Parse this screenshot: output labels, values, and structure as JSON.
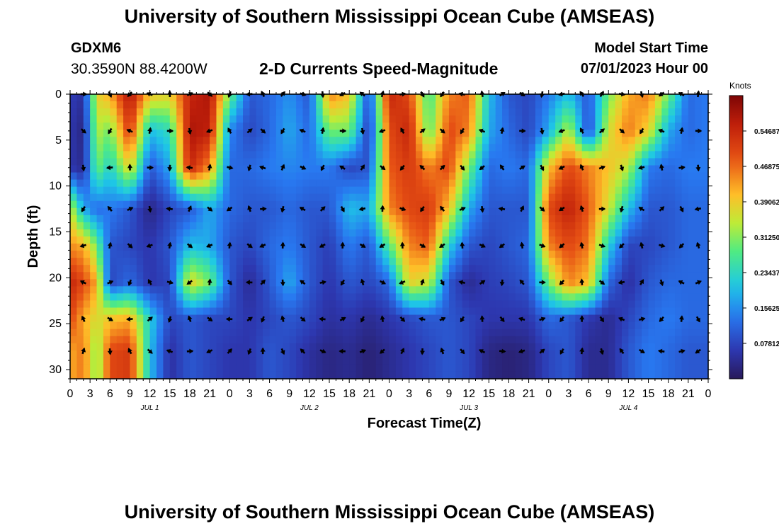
{
  "header": {
    "title": "University of Southern Mississippi Ocean Cube (AMSEAS)",
    "station": "GDXM6",
    "coords": "30.3590N  88.4200W",
    "subtitle": "2-D Currents Speed-Magnitude",
    "model_start_label": "Model Start Time",
    "model_start_value": "07/01/2023 Hour 00"
  },
  "footer": {
    "title": "University of Southern Mississippi Ocean Cube (AMSEAS)"
  },
  "chart_data": {
    "type": "heatmap",
    "title": "2-D Currents Speed-Magnitude",
    "xlabel": "Forecast Time(Z)",
    "ylabel": "Depth (ft)",
    "x_tick_labels": [
      "0",
      "3",
      "6",
      "9",
      "12",
      "15",
      "18",
      "21",
      "0",
      "3",
      "6",
      "9",
      "12",
      "15",
      "18",
      "21",
      "0",
      "3",
      "6",
      "9",
      "12",
      "15",
      "18",
      "21",
      "0",
      "3",
      "6",
      "9",
      "12",
      "15",
      "18",
      "21",
      "0"
    ],
    "day_labels": [
      {
        "label": "JUL 1",
        "hour": 12
      },
      {
        "label": "JUL 2",
        "hour": 36
      },
      {
        "label": "JUL 3",
        "hour": 60
      },
      {
        "label": "JUL 4",
        "hour": 84
      }
    ],
    "xlim": [
      0,
      96
    ],
    "ylim": [
      0,
      31
    ],
    "y_ticks": [
      0,
      5,
      10,
      15,
      20,
      25,
      30
    ],
    "y_inverted": true,
    "colorbar": {
      "unit": "Knots",
      "range": [
        0,
        0.625
      ],
      "tick_values": [
        0.078125,
        0.15625,
        0.234375,
        0.3125,
        0.390625,
        0.46875,
        0.546875
      ],
      "tick_labels": [
        "0.07812",
        "0.15625",
        "0.23437",
        "0.31250",
        "0.39062",
        "0.46875",
        "0.54687"
      ]
    },
    "depth_levels": [
      0,
      4,
      8,
      12.5,
      16.5,
      20.5,
      24.5,
      28
    ],
    "arrow_hours": [
      2,
      6,
      9,
      12,
      15,
      18,
      21,
      24,
      27,
      29,
      32,
      35,
      38,
      41,
      44,
      47,
      50,
      53,
      56,
      59,
      62,
      65,
      68,
      71,
      74,
      77,
      80,
      83,
      86,
      89,
      92,
      94.5
    ],
    "knots": [
      {
        "t": 0,
        "s": [
          0.07,
          0.06,
          0.06,
          0.36,
          0.44,
          0.55,
          0.5,
          0.42
        ]
      },
      {
        "t": 2,
        "s": [
          0.05,
          0.03,
          0.04,
          0.18,
          0.42,
          0.5,
          0.42,
          0.46
        ]
      },
      {
        "t": 4,
        "s": [
          0.38,
          0.34,
          0.3,
          0.12,
          0.3,
          0.42,
          0.36,
          0.3
        ]
      },
      {
        "t": 6,
        "s": [
          0.42,
          0.3,
          0.22,
          0.14,
          0.1,
          0.08,
          0.4,
          0.5
        ]
      },
      {
        "t": 9,
        "s": [
          0.58,
          0.52,
          0.38,
          0.1,
          0.08,
          0.12,
          0.42,
          0.52
        ]
      },
      {
        "t": 12,
        "s": [
          0.4,
          0.2,
          0.1,
          0.03,
          0.06,
          0.06,
          0.22,
          0.2
        ]
      },
      {
        "t": 15,
        "s": [
          0.38,
          0.24,
          0.18,
          0.08,
          0.1,
          0.08,
          0.08,
          0.05
        ]
      },
      {
        "t": 18,
        "s": [
          0.55,
          0.58,
          0.55,
          0.1,
          0.2,
          0.38,
          0.1,
          0.1
        ]
      },
      {
        "t": 21,
        "s": [
          0.58,
          0.56,
          0.44,
          0.18,
          0.18,
          0.3,
          0.08,
          0.08
        ]
      },
      {
        "t": 24,
        "s": [
          0.3,
          0.15,
          0.12,
          0.12,
          0.1,
          0.1,
          0.08,
          0.06
        ]
      },
      {
        "t": 27,
        "s": [
          0.1,
          0.08,
          0.12,
          0.1,
          0.08,
          0.04,
          0.06,
          0.06
        ]
      },
      {
        "t": 30,
        "s": [
          0.12,
          0.12,
          0.14,
          0.1,
          0.12,
          0.1,
          0.08,
          0.1
        ]
      },
      {
        "t": 33,
        "s": [
          0.16,
          0.18,
          0.15,
          0.12,
          0.14,
          0.18,
          0.1,
          0.08
        ]
      },
      {
        "t": 36,
        "s": [
          0.1,
          0.12,
          0.14,
          0.1,
          0.1,
          0.1,
          0.08,
          0.05
        ]
      },
      {
        "t": 39,
        "s": [
          0.45,
          0.3,
          0.14,
          0.1,
          0.07,
          0.06,
          0.05,
          0.03
        ]
      },
      {
        "t": 42,
        "s": [
          0.4,
          0.3,
          0.08,
          0.2,
          0.14,
          0.1,
          0.06,
          0.04
        ]
      },
      {
        "t": 45,
        "s": [
          0.08,
          0.06,
          0.1,
          0.18,
          0.1,
          0.08,
          0.04,
          0.02
        ]
      },
      {
        "t": 48,
        "s": [
          0.55,
          0.5,
          0.48,
          0.45,
          0.28,
          0.12,
          0.06,
          0.04
        ]
      },
      {
        "t": 51,
        "s": [
          0.5,
          0.55,
          0.52,
          0.5,
          0.45,
          0.38,
          0.08,
          0.06
        ]
      },
      {
        "t": 54,
        "s": [
          0.26,
          0.28,
          0.45,
          0.52,
          0.48,
          0.35,
          0.1,
          0.08
        ]
      },
      {
        "t": 57,
        "s": [
          0.45,
          0.5,
          0.5,
          0.4,
          0.22,
          0.1,
          0.1,
          0.1
        ]
      },
      {
        "t": 60,
        "s": [
          0.48,
          0.45,
          0.3,
          0.18,
          0.1,
          0.04,
          0.08,
          0.08
        ]
      },
      {
        "t": 63,
        "s": [
          0.2,
          0.18,
          0.12,
          0.1,
          0.08,
          0.07,
          0.06,
          0.03
        ]
      },
      {
        "t": 66,
        "s": [
          0.1,
          0.12,
          0.14,
          0.1,
          0.1,
          0.08,
          0.06,
          0.02
        ]
      },
      {
        "t": 69,
        "s": [
          0.08,
          0.08,
          0.12,
          0.1,
          0.12,
          0.1,
          0.06,
          0.03
        ]
      },
      {
        "t": 72,
        "s": [
          0.14,
          0.18,
          0.4,
          0.5,
          0.45,
          0.3,
          0.12,
          0.08
        ]
      },
      {
        "t": 75,
        "s": [
          0.2,
          0.35,
          0.5,
          0.56,
          0.5,
          0.45,
          0.1,
          0.1
        ]
      },
      {
        "t": 78,
        "s": [
          0.1,
          0.08,
          0.45,
          0.48,
          0.46,
          0.4,
          0.06,
          0.04
        ]
      },
      {
        "t": 81,
        "s": [
          0.3,
          0.36,
          0.4,
          0.36,
          0.22,
          0.12,
          0.04,
          0.04
        ]
      },
      {
        "t": 84,
        "s": [
          0.42,
          0.46,
          0.34,
          0.2,
          0.08,
          0.05,
          0.08,
          0.1
        ]
      },
      {
        "t": 87,
        "s": [
          0.46,
          0.38,
          0.14,
          0.1,
          0.08,
          0.1,
          0.12,
          0.14
        ]
      },
      {
        "t": 90,
        "s": [
          0.3,
          0.18,
          0.12,
          0.1,
          0.1,
          0.12,
          0.14,
          0.12
        ]
      },
      {
        "t": 93,
        "s": [
          0.12,
          0.12,
          0.14,
          0.12,
          0.12,
          0.12,
          0.12,
          0.1
        ]
      },
      {
        "t": 96,
        "s": [
          0.14,
          0.14,
          0.14,
          0.12,
          0.12,
          0.12,
          0.12,
          0.1
        ]
      }
    ]
  }
}
